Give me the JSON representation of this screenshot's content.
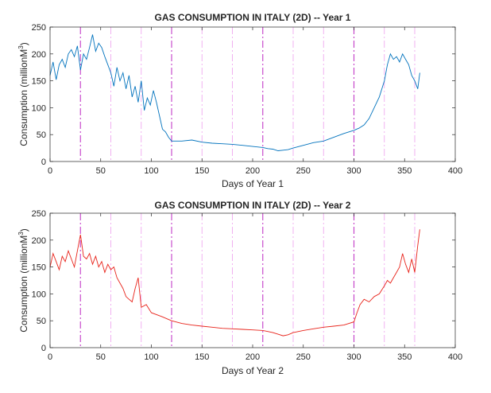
{
  "chart_data": [
    {
      "type": "line",
      "title": "GAS CONSUMPTION IN ITALY (2D) -- Year 1",
      "xlabel": "Days of Year 1",
      "ylabel": "Consumption (millionM3)",
      "ylabel_parts": {
        "main": "Consumption (millionM",
        "sup": "3",
        "tail": ")"
      },
      "xlim": [
        0,
        400
      ],
      "ylim": [
        0,
        250
      ],
      "xticks": [
        "0",
        "50",
        "100",
        "150",
        "200",
        "250",
        "300",
        "350",
        "400"
      ],
      "yticks": [
        "0",
        "50",
        "100",
        "150",
        "200",
        "250"
      ],
      "line_color": "#0072BD",
      "month_markers": [
        30,
        60,
        90,
        120,
        150,
        180,
        210,
        240,
        270,
        300,
        330,
        360
      ],
      "marker_colors": [
        "#c33cc8",
        "#f0a8f0"
      ],
      "series": [
        {
          "x": [
            0,
            3,
            6,
            9,
            12,
            15,
            18,
            21,
            24,
            27,
            30,
            33,
            36,
            39,
            42,
            45,
            48,
            51,
            54,
            57,
            60,
            63,
            66,
            69,
            72,
            75,
            78,
            81,
            84,
            87,
            90,
            93,
            96,
            99,
            102,
            105,
            108,
            111,
            114,
            117,
            120,
            130,
            140,
            150,
            160,
            170,
            180,
            190,
            200,
            210,
            215,
            220,
            225,
            230,
            235,
            240,
            250,
            260,
            270,
            280,
            290,
            300,
            305,
            310,
            315,
            320,
            325,
            330,
            333,
            336,
            339,
            342,
            345,
            348,
            351,
            354,
            357,
            360,
            363,
            365
          ],
          "values": [
            160,
            185,
            152,
            180,
            190,
            175,
            200,
            208,
            195,
            215,
            170,
            200,
            190,
            212,
            236,
            205,
            220,
            212,
            195,
            180,
            165,
            140,
            175,
            150,
            165,
            135,
            160,
            120,
            140,
            110,
            150,
            95,
            118,
            105,
            132,
            110,
            85,
            60,
            55,
            45,
            38,
            38,
            40,
            36,
            34,
            33,
            32,
            30,
            28,
            26,
            24,
            23,
            20,
            21,
            22,
            25,
            30,
            35,
            38,
            45,
            52,
            58,
            62,
            68,
            80,
            100,
            120,
            150,
            180,
            200,
            190,
            195,
            185,
            200,
            190,
            180,
            160,
            150,
            135,
            165
          ]
        }
      ]
    },
    {
      "type": "line",
      "title": "GAS CONSUMPTION IN ITALY (2D) -- Year 2",
      "xlabel": "Days of Year 2",
      "ylabel": "Consumption (millionM3)",
      "ylabel_parts": {
        "main": "Consumption (millionM",
        "sup": "3",
        "tail": ")"
      },
      "xlim": [
        0,
        400
      ],
      "ylim": [
        0,
        250
      ],
      "xticks": [
        "0",
        "50",
        "100",
        "150",
        "200",
        "250",
        "300",
        "350",
        "400"
      ],
      "yticks": [
        "0",
        "50",
        "100",
        "150",
        "200",
        "250"
      ],
      "line_color": "#E8231A",
      "month_markers": [
        30,
        60,
        90,
        120,
        150,
        180,
        210,
        240,
        270,
        300,
        330,
        360
      ],
      "marker_colors": [
        "#c33cc8",
        "#f0a8f0"
      ],
      "series": [
        {
          "x": [
            0,
            3,
            6,
            9,
            12,
            15,
            18,
            21,
            24,
            27,
            30,
            33,
            36,
            39,
            42,
            45,
            48,
            51,
            54,
            57,
            60,
            63,
            66,
            69,
            72,
            75,
            78,
            81,
            84,
            87,
            90,
            95,
            100,
            110,
            120,
            130,
            140,
            150,
            160,
            170,
            180,
            190,
            200,
            210,
            215,
            220,
            225,
            230,
            235,
            240,
            250,
            260,
            270,
            280,
            290,
            300,
            303,
            306,
            310,
            315,
            320,
            325,
            330,
            333,
            336,
            339,
            342,
            345,
            348,
            351,
            354,
            357,
            360,
            363,
            365
          ],
          "values": [
            150,
            175,
            160,
            145,
            170,
            160,
            180,
            165,
            150,
            180,
            210,
            170,
            165,
            175,
            155,
            170,
            150,
            160,
            140,
            155,
            145,
            150,
            130,
            120,
            110,
            95,
            90,
            85,
            110,
            130,
            75,
            80,
            65,
            58,
            50,
            45,
            42,
            40,
            38,
            36,
            35,
            34,
            33,
            32,
            30,
            28,
            25,
            22,
            24,
            28,
            32,
            35,
            38,
            40,
            42,
            48,
            65,
            80,
            90,
            85,
            95,
            100,
            115,
            125,
            120,
            130,
            140,
            150,
            175,
            155,
            140,
            165,
            140,
            190,
            220
          ]
        }
      ]
    }
  ]
}
